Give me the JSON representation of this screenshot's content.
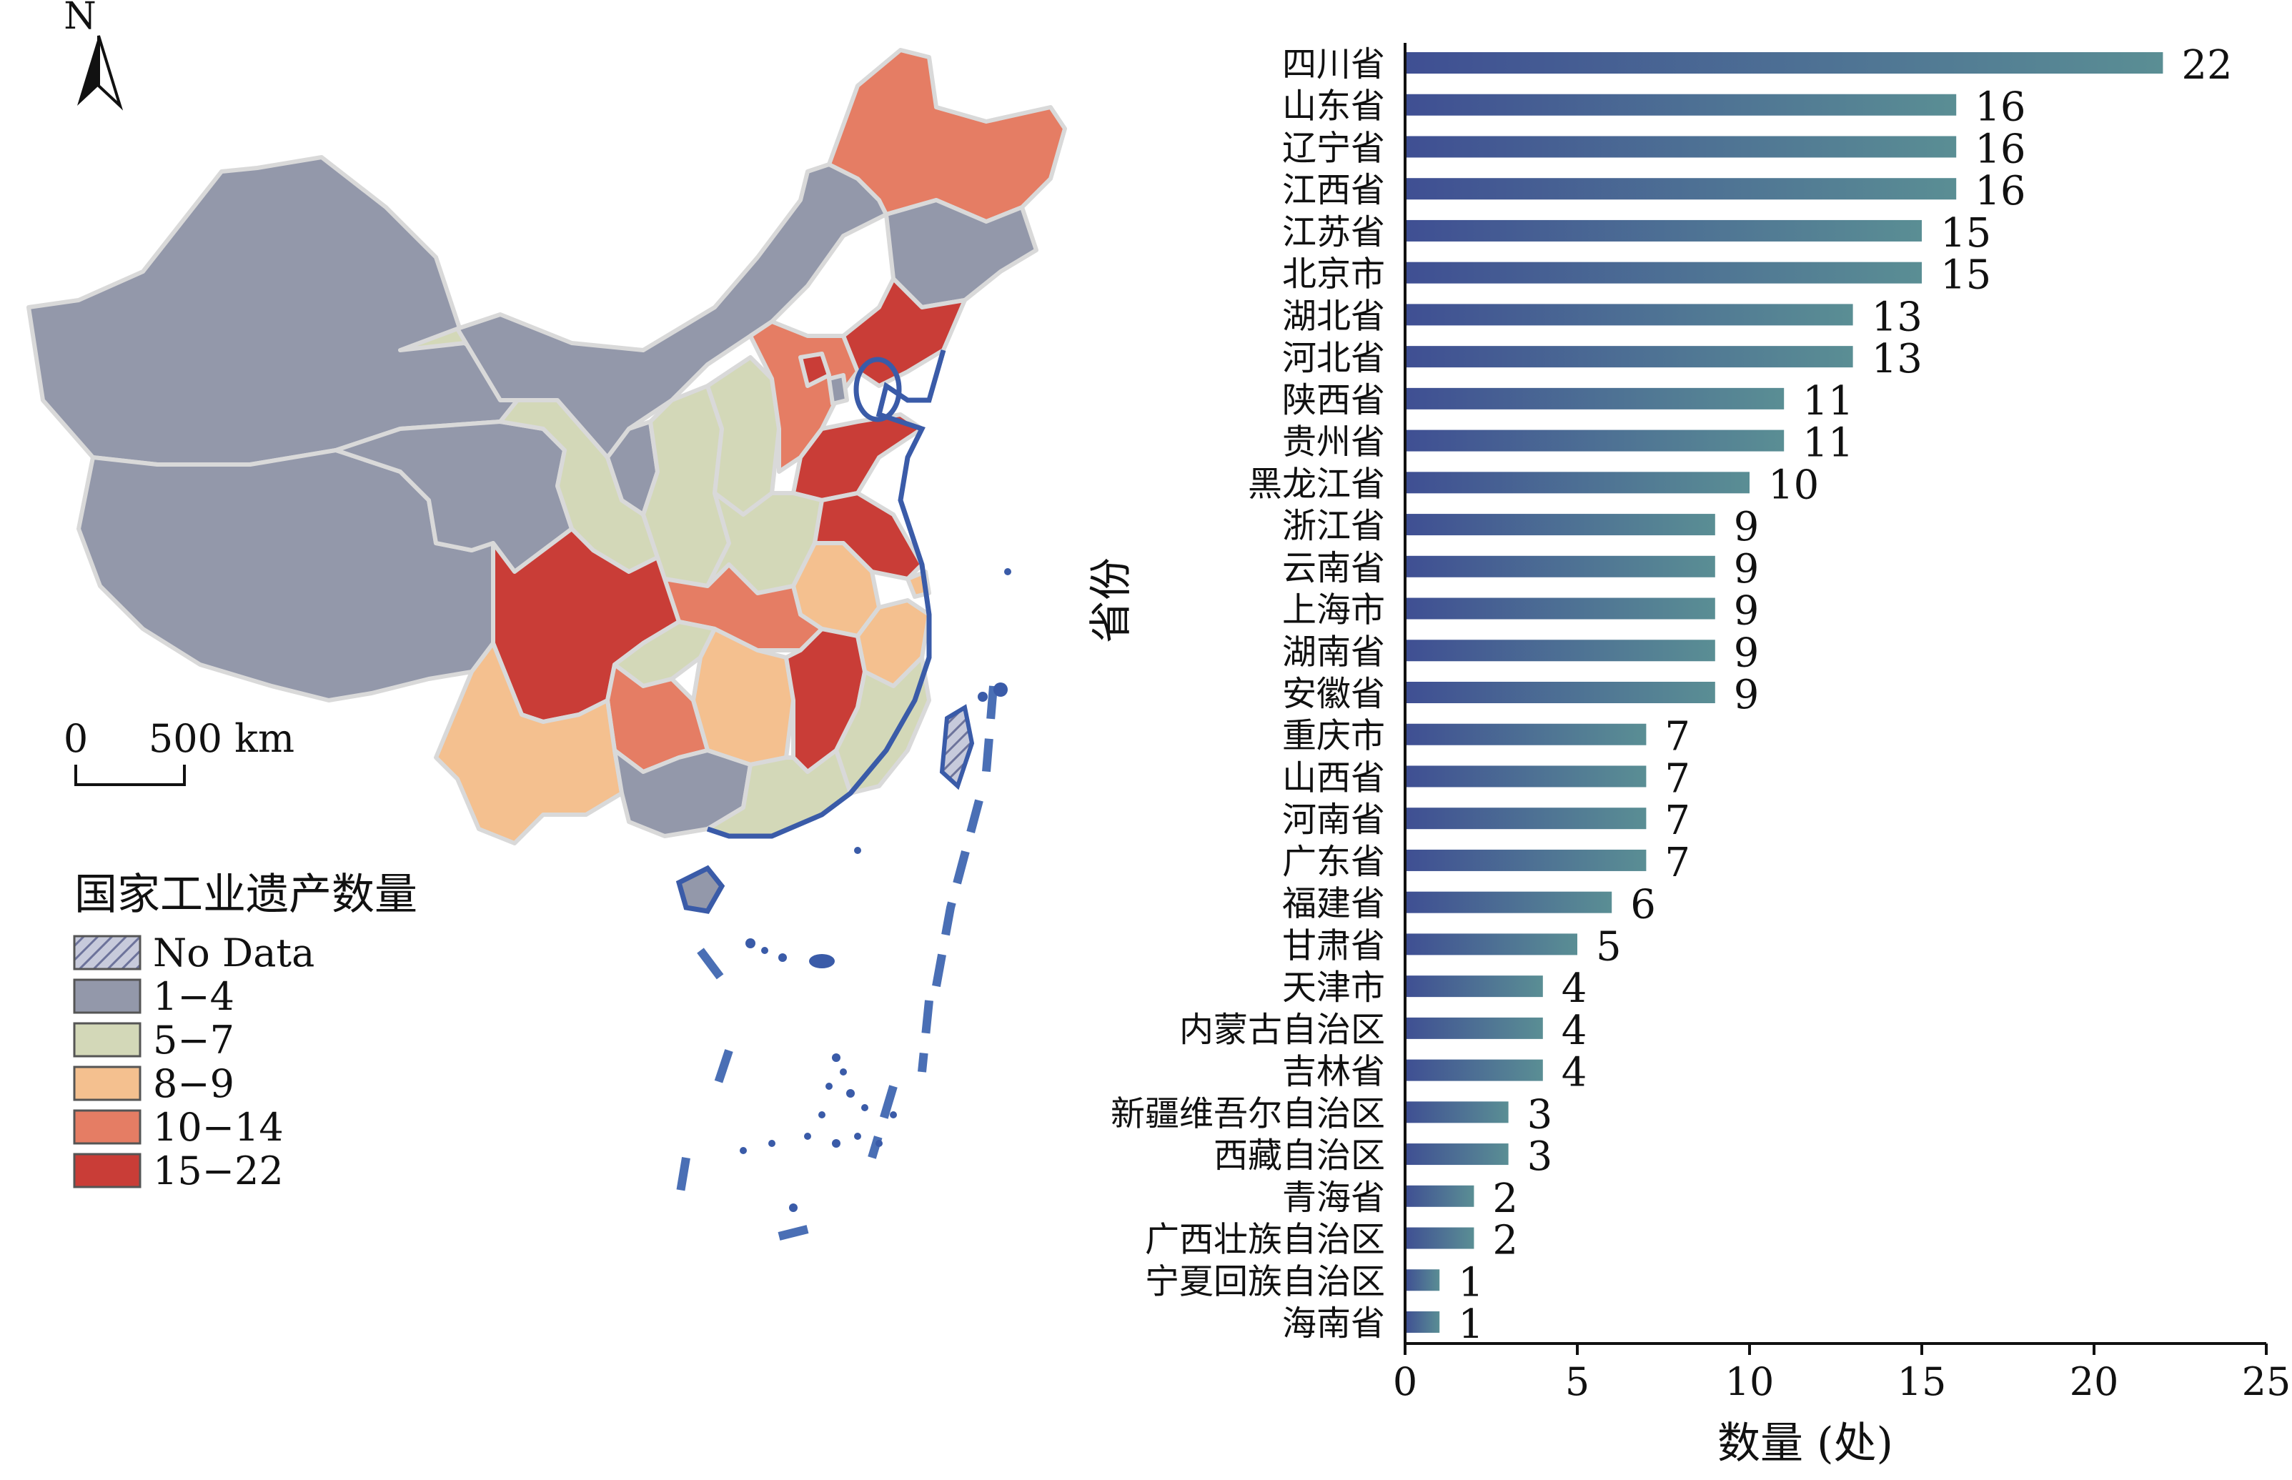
{
  "map": {
    "north_label": "N",
    "scale_zero": "0",
    "scale_label": "500 km",
    "legend_title": "国家工业遗产数量",
    "legend": [
      {
        "label": "No Data",
        "color": "#a7acc7",
        "pattern": "hatch"
      },
      {
        "label": "1−4",
        "color": "#9398aa"
      },
      {
        "label": "5−7",
        "color": "#d3d8b8"
      },
      {
        "label": "8−9",
        "color": "#f4c08f"
      },
      {
        "label": "10−14",
        "color": "#e57d64"
      },
      {
        "label": "15−22",
        "color": "#c93d37"
      }
    ]
  },
  "chart_data": {
    "type": "bar",
    "orientation": "horizontal",
    "ylabel": "省份",
    "xlabel": "数量 (处)",
    "xlim": [
      0,
      25
    ],
    "xticks": [
      0,
      5,
      10,
      15,
      20,
      25
    ],
    "bar_gradient": [
      "#3f4f93",
      "#5a8e94"
    ],
    "categories": [
      "四川省",
      "山东省",
      "辽宁省",
      "江西省",
      "江苏省",
      "北京市",
      "湖北省",
      "河北省",
      "陕西省",
      "贵州省",
      "黑龙江省",
      "浙江省",
      "云南省",
      "上海市",
      "湖南省",
      "安徽省",
      "重庆市",
      "山西省",
      "河南省",
      "广东省",
      "福建省",
      "甘肃省",
      "天津市",
      "内蒙古自治区",
      "吉林省",
      "新疆维吾尔自治区",
      "西藏自治区",
      "青海省",
      "广西壮族自治区",
      "宁夏回族自治区",
      "海南省"
    ],
    "values": [
      22,
      16,
      16,
      16,
      15,
      15,
      13,
      13,
      11,
      11,
      10,
      9,
      9,
      9,
      9,
      9,
      7,
      7,
      7,
      7,
      6,
      5,
      4,
      4,
      4,
      3,
      3,
      2,
      2,
      1,
      1
    ]
  }
}
